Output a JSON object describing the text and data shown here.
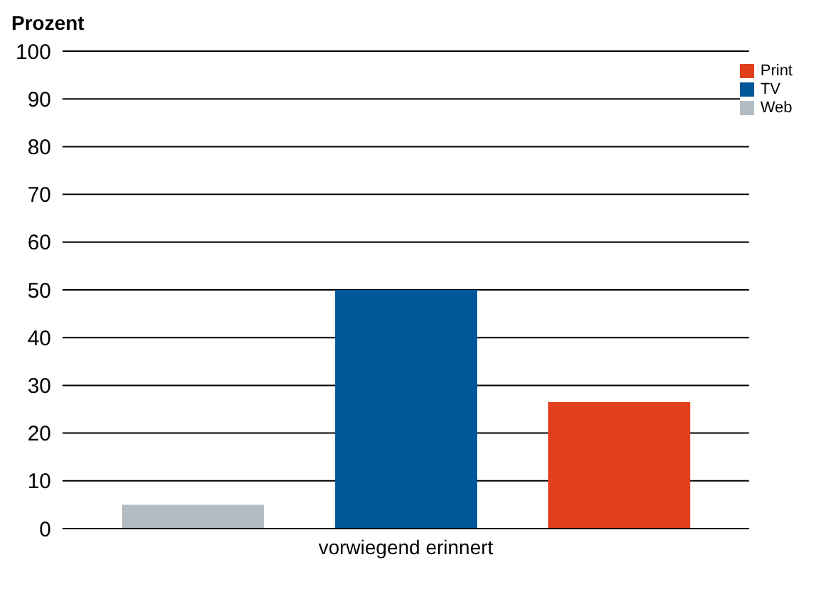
{
  "chart_data": {
    "type": "bar",
    "ylabel": "Prozent",
    "categories": [
      "vorwiegend erinnert"
    ],
    "series": [
      {
        "name": "Web",
        "color": "#b4bcc3",
        "values": [
          5
        ]
      },
      {
        "name": "TV",
        "color": "#00579a",
        "values": [
          50
        ]
      },
      {
        "name": "Print",
        "color": "#e2401c",
        "values": [
          26.5
        ]
      }
    ],
    "ylim": [
      0,
      100
    ],
    "yticks": [
      0,
      10,
      20,
      30,
      40,
      50,
      60,
      70,
      80,
      90,
      100
    ],
    "grid": "y",
    "legend": "top right"
  }
}
